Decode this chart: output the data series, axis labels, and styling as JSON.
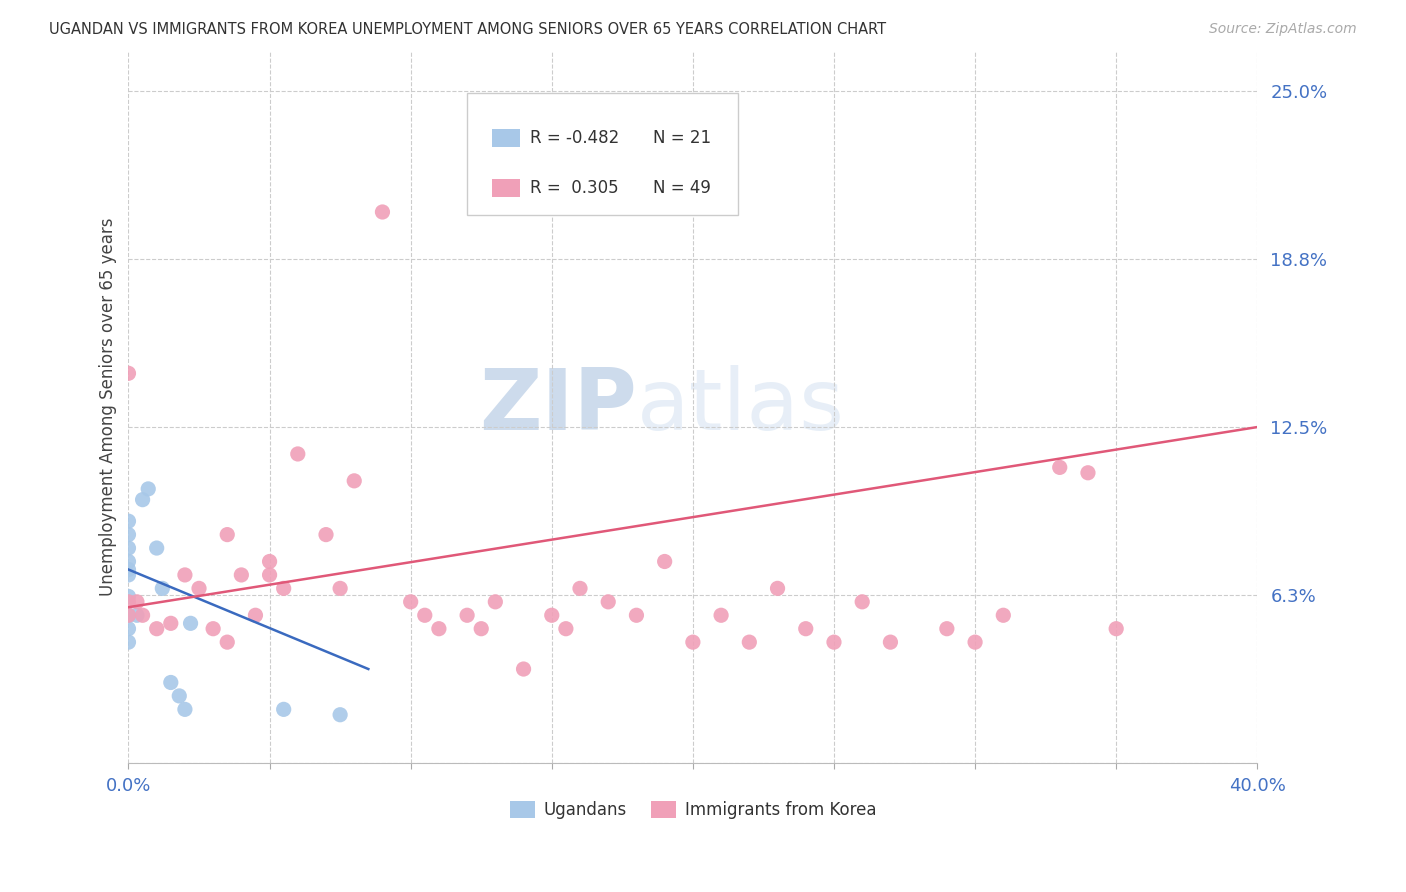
{
  "title": "UGANDAN VS IMMIGRANTS FROM KOREA UNEMPLOYMENT AMONG SENIORS OVER 65 YEARS CORRELATION CHART",
  "source": "Source: ZipAtlas.com",
  "ylabel": "Unemployment Among Seniors over 65 years",
  "xlim": [
    0,
    40
  ],
  "ylim": [
    0,
    26.5
  ],
  "ugandan_color": "#a8c8e8",
  "korean_color": "#f0a0b8",
  "ugandan_line_color": "#3a6abf",
  "korean_line_color": "#e05878",
  "legend_ugandan_R": "-0.482",
  "legend_ugandan_N": "21",
  "legend_korean_R": "0.305",
  "legend_korean_N": "49",
  "legend_label1": "Ugandans",
  "legend_label2": "Immigrants from Korea",
  "watermark_zip": "ZIP",
  "watermark_atlas": "atlas",
  "ytick_vals": [
    0.0,
    6.25,
    12.5,
    18.75,
    25.0
  ],
  "ytick_labels": [
    "",
    "6.3%",
    "12.5%",
    "18.8%",
    "25.0%"
  ],
  "xtick_vals": [
    0.0,
    5.0,
    10.0,
    15.0,
    20.0,
    25.0,
    30.0,
    35.0,
    40.0
  ],
  "ugandan_x": [
    0.0,
    0.0,
    0.0,
    0.0,
    0.0,
    0.0,
    0.0,
    0.0,
    0.0,
    0.0,
    0.3,
    0.5,
    0.7,
    1.0,
    1.2,
    1.5,
    1.8,
    2.0,
    2.2,
    5.5,
    7.5
  ],
  "ugandan_y": [
    5.5,
    6.2,
    7.0,
    7.5,
    8.0,
    8.5,
    9.0,
    5.0,
    4.5,
    7.2,
    5.5,
    9.8,
    10.2,
    8.0,
    6.5,
    3.0,
    2.5,
    2.0,
    5.2,
    2.0,
    1.8
  ],
  "korean_x": [
    0.0,
    0.0,
    0.0,
    0.3,
    0.5,
    1.0,
    1.5,
    2.0,
    2.5,
    3.0,
    3.5,
    3.5,
    4.0,
    4.5,
    5.0,
    5.0,
    5.5,
    6.0,
    7.0,
    7.5,
    8.0,
    9.0,
    10.0,
    10.5,
    11.0,
    12.0,
    12.5,
    13.0,
    14.0,
    15.0,
    15.5,
    16.0,
    17.0,
    18.0,
    19.0,
    20.0,
    21.0,
    22.0,
    23.0,
    24.0,
    25.0,
    26.0,
    27.0,
    29.0,
    30.0,
    31.0,
    33.0,
    34.0,
    35.0
  ],
  "korean_y": [
    14.5,
    6.0,
    5.5,
    6.0,
    5.5,
    5.0,
    5.2,
    7.0,
    6.5,
    5.0,
    4.5,
    8.5,
    7.0,
    5.5,
    7.5,
    7.0,
    6.5,
    11.5,
    8.5,
    6.5,
    10.5,
    20.5,
    6.0,
    5.5,
    5.0,
    5.5,
    5.0,
    6.0,
    3.5,
    5.5,
    5.0,
    6.5,
    6.0,
    5.5,
    7.5,
    4.5,
    5.5,
    4.5,
    6.5,
    5.0,
    4.5,
    6.0,
    4.5,
    5.0,
    4.5,
    5.5,
    11.0,
    10.8,
    5.0
  ],
  "ugandan_trend_x": [
    0.0,
    8.5
  ],
  "ugandan_trend_y": [
    7.2,
    3.5
  ],
  "korean_trend_x": [
    0.0,
    40.0
  ],
  "korean_trend_y": [
    5.8,
    12.5
  ]
}
